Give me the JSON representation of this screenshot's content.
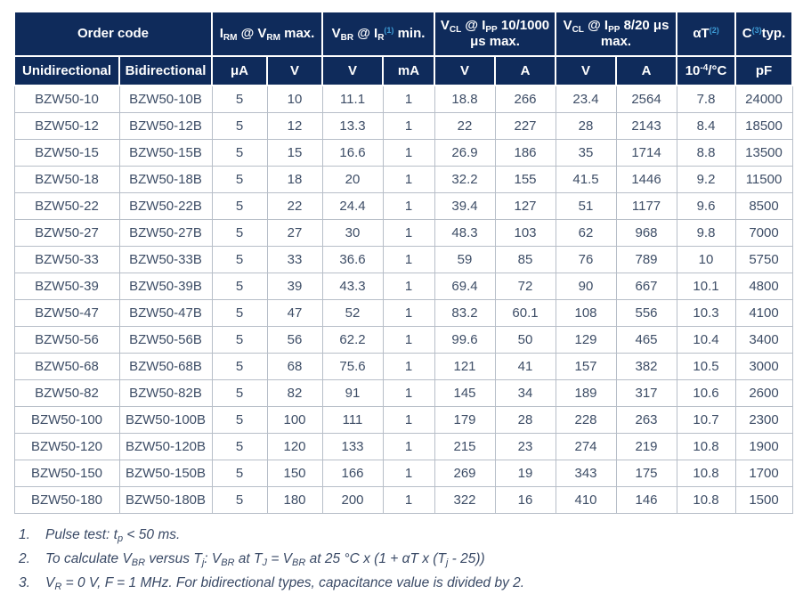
{
  "colors": {
    "header_background": "#0F2B5B",
    "header_text": "#FFFFFF",
    "body_text": "#3D4D66",
    "footnote_reference_blue": "#3D9BD5",
    "grid_line": "#B7BEC8"
  },
  "table": {
    "header_groups": [
      {
        "label": "Order code",
        "span": 2
      },
      {
        "label": "I~RM~ @ V~RM~ max.",
        "span": 2
      },
      {
        "label": "V~BR~ @ I~R~%(1)% min.",
        "span": 2
      },
      {
        "label": "V~CL~ @ I~PP~ 10/1000 μs max.",
        "span": 2
      },
      {
        "label": "V~CL~ @ I~PP~ 8/20 μs max.",
        "span": 2
      },
      {
        "label": "αT%(2)%",
        "span": 1
      },
      {
        "label": "C%(3)%typ.",
        "span": 1
      }
    ],
    "subheaders": [
      "Unidirectional",
      "Bidirectional",
      "μA",
      "V",
      "V",
      "mA",
      "V",
      "A",
      "V",
      "A",
      "10^-4^/°C",
      "pF"
    ],
    "rows": [
      [
        "BZW50-10",
        "BZW50-10B",
        "5",
        "10",
        "11.1",
        "1",
        "18.8",
        "266",
        "23.4",
        "2564",
        "7.8",
        "24000"
      ],
      [
        "BZW50-12",
        "BZW50-12B",
        "5",
        "12",
        "13.3",
        "1",
        "22",
        "227",
        "28",
        "2143",
        "8.4",
        "18500"
      ],
      [
        "BZW50-15",
        "BZW50-15B",
        "5",
        "15",
        "16.6",
        "1",
        "26.9",
        "186",
        "35",
        "1714",
        "8.8",
        "13500"
      ],
      [
        "BZW50-18",
        "BZW50-18B",
        "5",
        "18",
        "20",
        "1",
        "32.2",
        "155",
        "41.5",
        "1446",
        "9.2",
        "11500"
      ],
      [
        "BZW50-22",
        "BZW50-22B",
        "5",
        "22",
        "24.4",
        "1",
        "39.4",
        "127",
        "51",
        "1177",
        "9.6",
        "8500"
      ],
      [
        "BZW50-27",
        "BZW50-27B",
        "5",
        "27",
        "30",
        "1",
        "48.3",
        "103",
        "62",
        "968",
        "9.8",
        "7000"
      ],
      [
        "BZW50-33",
        "BZW50-33B",
        "5",
        "33",
        "36.6",
        "1",
        "59",
        "85",
        "76",
        "789",
        "10",
        "5750"
      ],
      [
        "BZW50-39",
        "BZW50-39B",
        "5",
        "39",
        "43.3",
        "1",
        "69.4",
        "72",
        "90",
        "667",
        "10.1",
        "4800"
      ],
      [
        "BZW50-47",
        "BZW50-47B",
        "5",
        "47",
        "52",
        "1",
        "83.2",
        "60.1",
        "108",
        "556",
        "10.3",
        "4100"
      ],
      [
        "BZW50-56",
        "BZW50-56B",
        "5",
        "56",
        "62.2",
        "1",
        "99.6",
        "50",
        "129",
        "465",
        "10.4",
        "3400"
      ],
      [
        "BZW50-68",
        "BZW50-68B",
        "5",
        "68",
        "75.6",
        "1",
        "121",
        "41",
        "157",
        "382",
        "10.5",
        "3000"
      ],
      [
        "BZW50-82",
        "BZW50-82B",
        "5",
        "82",
        "91",
        "1",
        "145",
        "34",
        "189",
        "317",
        "10.6",
        "2600"
      ],
      [
        "BZW50-100",
        "BZW50-100B",
        "5",
        "100",
        "111",
        "1",
        "179",
        "28",
        "228",
        "263",
        "10.7",
        "2300"
      ],
      [
        "BZW50-120",
        "BZW50-120B",
        "5",
        "120",
        "133",
        "1",
        "215",
        "23",
        "274",
        "219",
        "10.8",
        "1900"
      ],
      [
        "BZW50-150",
        "BZW50-150B",
        "5",
        "150",
        "166",
        "1",
        "269",
        "19",
        "343",
        "175",
        "10.8",
        "1700"
      ],
      [
        "BZW50-180",
        "BZW50-180B",
        "5",
        "180",
        "200",
        "1",
        "322",
        "16",
        "410",
        "146",
        "10.8",
        "1500"
      ]
    ]
  },
  "footnotes": [
    {
      "num": "1.",
      "text": "Pulse test: t~p~ < 50 ms."
    },
    {
      "num": "2.",
      "text": "To calculate V~BR~ versus T~j~: V~BR~ at T~J~ = V~BR~ at 25 °C x (1 + αT x (T~j~ - 25))"
    },
    {
      "num": "3.",
      "text": "V~R~ = 0 V, F = 1 MHz. For bidirectional types, capacitance value is divided by 2."
    }
  ]
}
